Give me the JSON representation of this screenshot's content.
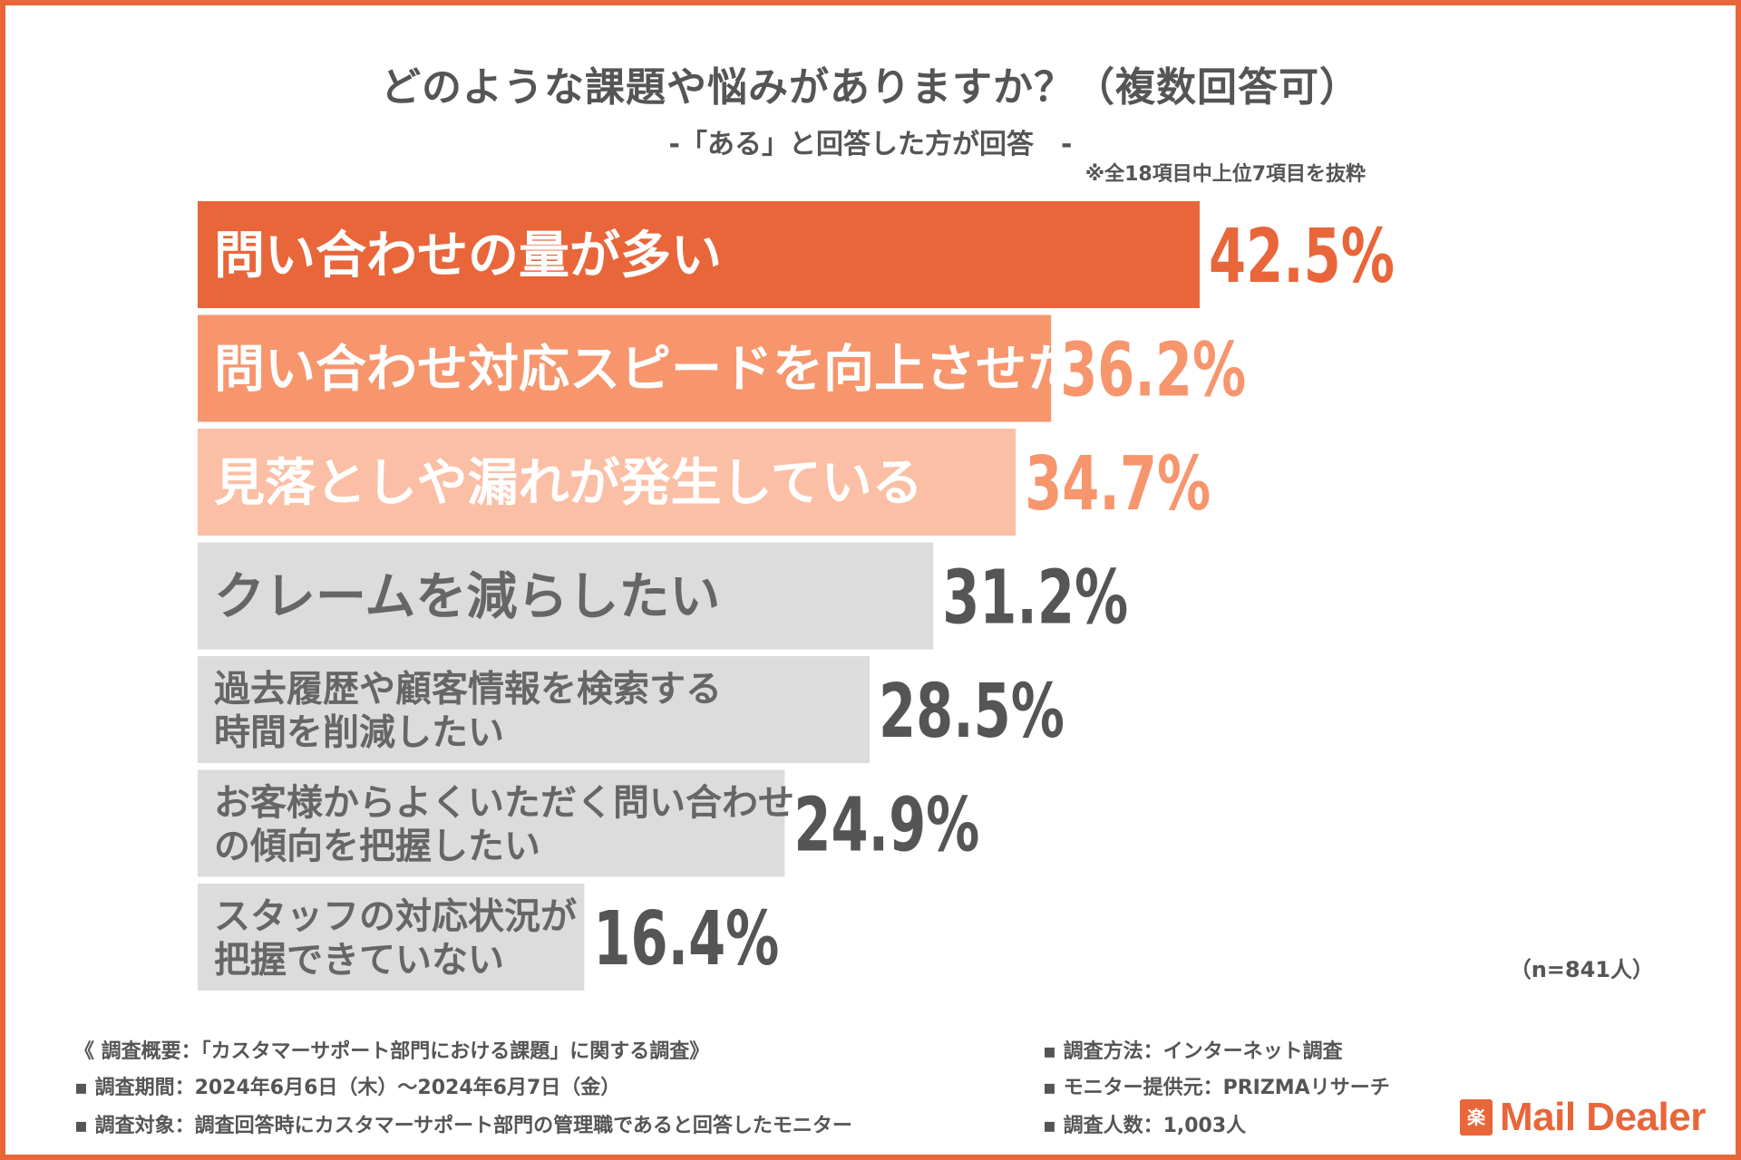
{
  "chart_data": {
    "type": "bar",
    "orientation": "horizontal",
    "title": "どのような課題や悩みがありますか？（複数回答可）",
    "subtitle": "-「ある」と回答した方が回答　-",
    "note": "※全18項目中上位7項目を抜粋",
    "categories": [
      [
        "問い合わせの量が多い"
      ],
      [
        "問い合わせ対応スピードを向上させたい"
      ],
      [
        "見落としや漏れが発生している"
      ],
      [
        "クレームを減らしたい"
      ],
      [
        "過去履歴や顧客情報を検索する",
        "時間を削減したい"
      ],
      [
        "お客様からよくいただく問い合わせ",
        "の傾向を把握したい"
      ],
      [
        "スタッフの対応状況が",
        "把握できていない"
      ]
    ],
    "values": [
      42.5,
      36.2,
      34.7,
      31.2,
      28.5,
      24.9,
      16.4
    ],
    "value_labels": [
      "42.5%",
      "36.2%",
      "34.7%",
      "31.2%",
      "28.5%",
      "24.9%",
      "16.4%"
    ],
    "bar_colors": [
      "#e8663a",
      "#f7956d",
      "#fbbfa5",
      "#dcdcdc",
      "#dcdcdc",
      "#dcdcdc",
      "#dcdcdc"
    ],
    "label_colors": [
      "#ffffff",
      "#ffffff",
      "#ffffff",
      "#666666",
      "#666666",
      "#666666",
      "#666666"
    ],
    "value_colors": [
      "#e8663a",
      "#f7956d",
      "#f7956d",
      "#555555",
      "#555555",
      "#555555",
      "#555555"
    ],
    "xlim": [
      0,
      50
    ],
    "sample_size": "（n=841人）"
  },
  "footer": {
    "overview": "《 調査概要：「カスタマーサポート部門における課題」に関する調査》",
    "period": "▪ 調査期間：2024年6月6日（木）～2024年6月7日（金）",
    "target": "▪ 調査対象：調査回答時にカスタマーサポート部門の管理職であると回答したモニター",
    "method": "▪ 調査方法：インターネット調査",
    "provider": "▪ モニター提供元：PRIZMAリサーチ",
    "respondents": "▪ 調査人数：1,003人"
  },
  "logo": {
    "mark": "楽",
    "text": "Mail Dealer"
  },
  "colors": {
    "accent": "#e8663a",
    "border": "#e8663a"
  }
}
